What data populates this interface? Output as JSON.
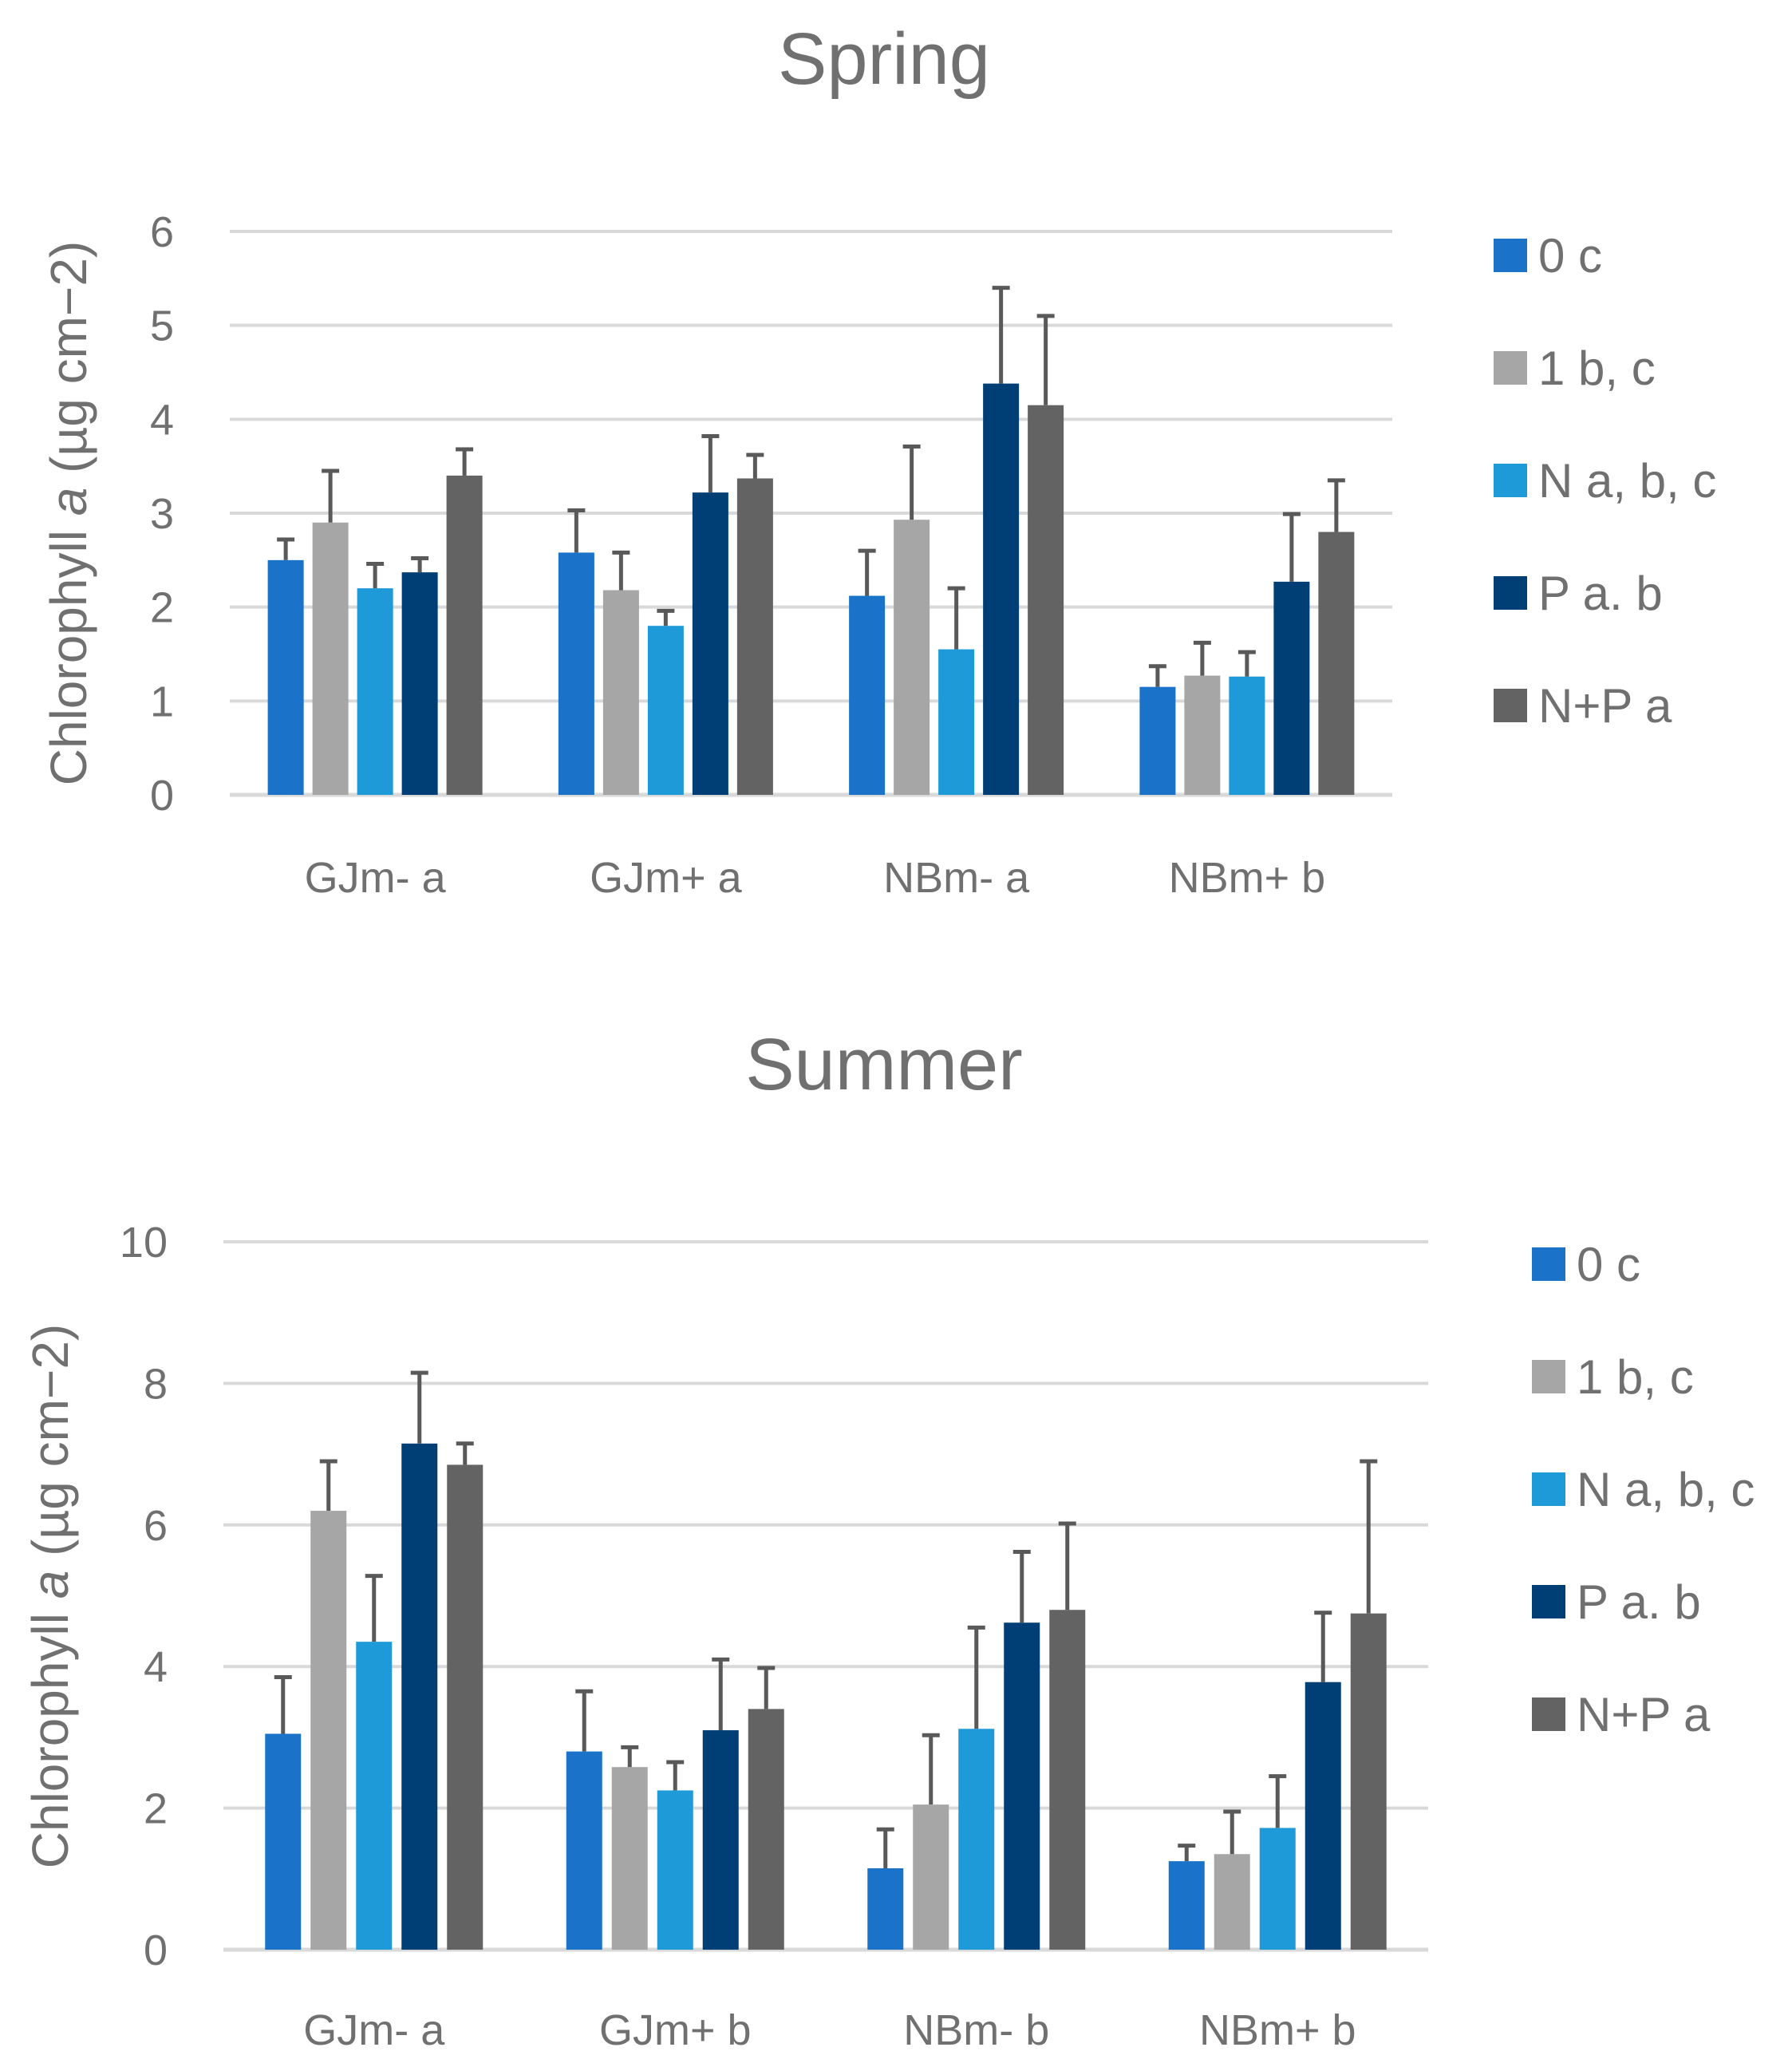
{
  "chart_data": [
    {
      "type": "bar",
      "title": "Spring",
      "ylabel_prefix": "Chlorophyll ",
      "ylabel_italic": "a",
      "ylabel_suffix": " (µg cm−2)",
      "xlabel": "",
      "ylim": [
        0,
        6
      ],
      "yticks": [
        0,
        1,
        2,
        3,
        4,
        5,
        6
      ],
      "categories": [
        "GJm- a",
        "GJm+ a",
        "NBm- a",
        "NBm+ b"
      ],
      "series": [
        {
          "name": "0 c",
          "color": "#1a73c8",
          "values": [
            2.5,
            2.58,
            2.12,
            1.15
          ],
          "errors": [
            0.22,
            0.45,
            0.48,
            0.22
          ]
        },
        {
          "name": "1 b, c",
          "color": "#a6a6a6",
          "values": [
            2.9,
            2.18,
            2.93,
            1.27
          ],
          "errors": [
            0.55,
            0.4,
            0.78,
            0.35
          ]
        },
        {
          "name": "N a, b, c",
          "color": "#1f9ad9",
          "values": [
            2.2,
            1.8,
            1.55,
            1.26
          ],
          "errors": [
            0.26,
            0.16,
            0.65,
            0.26
          ]
        },
        {
          "name": "P a. b",
          "color": "#003f75",
          "values": [
            2.37,
            3.22,
            4.38,
            2.27
          ],
          "errors": [
            0.15,
            0.6,
            1.02,
            0.72
          ]
        },
        {
          "name": "N+P a",
          "color": "#636363",
          "values": [
            3.4,
            3.37,
            4.15,
            2.8
          ],
          "errors": [
            0.28,
            0.25,
            0.95,
            0.55
          ]
        }
      ]
    },
    {
      "type": "bar",
      "title": "Summer",
      "ylabel_prefix": "Chlorophyll ",
      "ylabel_italic": "a",
      "ylabel_suffix": " (µg cm−2)",
      "xlabel": "",
      "ylim": [
        0,
        10
      ],
      "yticks": [
        0,
        2,
        4,
        6,
        8,
        10
      ],
      "categories": [
        "GJm- a",
        "GJm+ b",
        "NBm- b",
        "NBm+ b"
      ],
      "series": [
        {
          "name": "0 c",
          "color": "#1a73c8",
          "values": [
            3.05,
            2.8,
            1.15,
            1.25
          ],
          "errors": [
            0.8,
            0.85,
            0.55,
            0.22
          ]
        },
        {
          "name": "1 b, c",
          "color": "#a6a6a6",
          "values": [
            6.2,
            2.58,
            2.05,
            1.35
          ],
          "errors": [
            0.7,
            0.28,
            0.98,
            0.6
          ]
        },
        {
          "name": "N a, b, c",
          "color": "#1f9ad9",
          "values": [
            4.35,
            2.25,
            3.12,
            1.72
          ],
          "errors": [
            0.93,
            0.4,
            1.43,
            0.73
          ]
        },
        {
          "name": "P a. b",
          "color": "#003f75",
          "values": [
            7.15,
            3.1,
            4.62,
            3.78
          ],
          "errors": [
            1.0,
            1.0,
            1.0,
            0.98
          ]
        },
        {
          "name": "N+P a",
          "color": "#636363",
          "values": [
            6.85,
            3.4,
            4.8,
            4.75
          ],
          "errors": [
            0.3,
            0.58,
            1.22,
            2.15
          ]
        }
      ]
    }
  ]
}
